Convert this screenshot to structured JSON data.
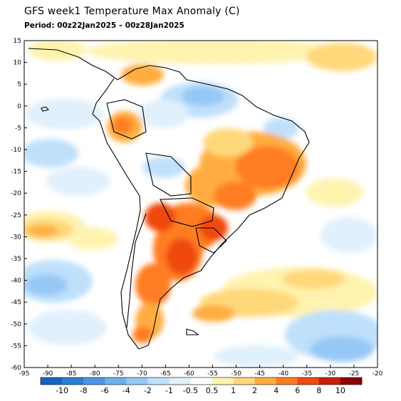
{
  "header": {
    "title": "GFS week1 Temperature Max Anomaly (C)",
    "period": "Period: 00z22Jan2025 – 00z28Jan2025"
  },
  "map": {
    "region": "South America",
    "lon_range": [
      -95,
      -20
    ],
    "lat_range": [
      -60,
      15
    ],
    "lat_ticks": [
      "15",
      "10",
      "5",
      "0",
      "-5",
      "-10",
      "-15",
      "-20",
      "-25",
      "-30",
      "-35",
      "-40",
      "-45",
      "-50",
      "-55",
      "-60"
    ],
    "lon_ticks": [
      "-95",
      "-90",
      "-85",
      "-80",
      "-75",
      "-70",
      "-65",
      "-60",
      "-55",
      "-50",
      "-45",
      "-40",
      "-35",
      "-30",
      "-25",
      "-20"
    ]
  },
  "colorbar": {
    "labels": [
      "-10",
      "-8",
      "-6",
      "-4",
      "-2",
      "-1",
      "-0.5",
      "0.5",
      "1",
      "2",
      "4",
      "6",
      "8",
      "10"
    ],
    "colors": [
      "#1565c0",
      "#2c7fd6",
      "#4a96e4",
      "#6fb0f0",
      "#96c8f6",
      "#bfe0fb",
      "#e0f0fd",
      "#ffffff",
      "#fff3b0",
      "#ffd87a",
      "#ffad40",
      "#ff7d22",
      "#ef4a10",
      "#c81e08",
      "#8b0000"
    ]
  }
}
